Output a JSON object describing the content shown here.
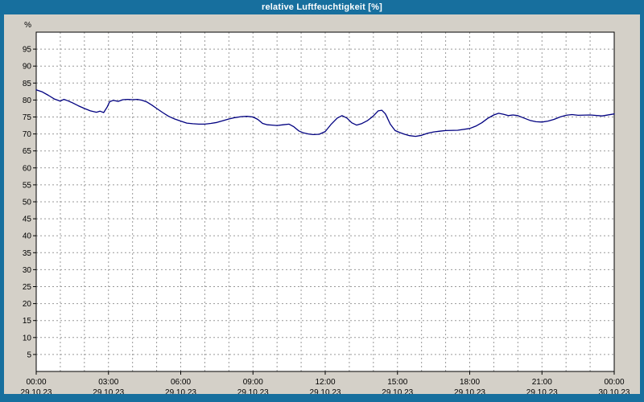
{
  "header": {
    "title": "relative Luftfeuchtigkeit [%]"
  },
  "colors": {
    "titlebar_bg": "#176f9e",
    "frame": "#176f9e",
    "window_bg": "#d4d0c8",
    "plot_bg": "#ffffff",
    "grid": "#999999",
    "axis": "#000000",
    "line": "#000080",
    "title_text": "#ffffff",
    "label_text": "#000000"
  },
  "chart_data": {
    "type": "line",
    "title": "relative Luftfeuchtigkeit [%]",
    "xlabel": "",
    "ylabel": "%",
    "ylim": [
      0,
      100
    ],
    "y_ticks": [
      5,
      10,
      15,
      20,
      25,
      30,
      35,
      40,
      45,
      50,
      55,
      60,
      65,
      70,
      75,
      80,
      85,
      90,
      95
    ],
    "x_range_hours": [
      0,
      24
    ],
    "x_minor_step_hours": 1,
    "grid": true,
    "grid_style": "dashed",
    "legend_position": "none",
    "x_major_ticks": [
      {
        "hour": 0,
        "time": "00:00",
        "date": "29.10.23"
      },
      {
        "hour": 3,
        "time": "03:00",
        "date": "29.10.23"
      },
      {
        "hour": 6,
        "time": "06:00",
        "date": "29.10.23"
      },
      {
        "hour": 9,
        "time": "09:00",
        "date": "29.10.23"
      },
      {
        "hour": 12,
        "time": "12:00",
        "date": "29.10.23"
      },
      {
        "hour": 15,
        "time": "15:00",
        "date": "29.10.23"
      },
      {
        "hour": 18,
        "time": "18:00",
        "date": "29.10.23"
      },
      {
        "hour": 21,
        "time": "21:00",
        "date": "29.10.23"
      },
      {
        "hour": 24,
        "time": "00:00",
        "date": "30.10.23"
      }
    ],
    "series": [
      {
        "name": "relative Luftfeuchtigkeit",
        "color": "#000080",
        "points": [
          [
            0,
            83
          ],
          [
            0.25,
            82.4
          ],
          [
            0.5,
            81.4
          ],
          [
            0.75,
            80.3
          ],
          [
            1,
            79.7
          ],
          [
            1.15,
            80.2
          ],
          [
            1.3,
            79.8
          ],
          [
            1.5,
            79.2
          ],
          [
            1.75,
            78.3
          ],
          [
            2,
            77.5
          ],
          [
            2.25,
            76.8
          ],
          [
            2.5,
            76.4
          ],
          [
            2.65,
            76.7
          ],
          [
            2.8,
            76.3
          ],
          [
            2.95,
            78
          ],
          [
            3.05,
            79.5
          ],
          [
            3.2,
            79.9
          ],
          [
            3.4,
            79.6
          ],
          [
            3.6,
            80.1
          ],
          [
            3.8,
            80.2
          ],
          [
            4,
            80.1
          ],
          [
            4.2,
            80.2
          ],
          [
            4.4,
            79.9
          ],
          [
            4.6,
            79.4
          ],
          [
            4.8,
            78.5
          ],
          [
            5,
            77.5
          ],
          [
            5.25,
            76.3
          ],
          [
            5.5,
            75.2
          ],
          [
            5.75,
            74.4
          ],
          [
            6,
            73.8
          ],
          [
            6.25,
            73.2
          ],
          [
            6.5,
            73
          ],
          [
            6.75,
            72.9
          ],
          [
            7,
            72.9
          ],
          [
            7.25,
            73.1
          ],
          [
            7.5,
            73.4
          ],
          [
            7.75,
            73.9
          ],
          [
            8,
            74.4
          ],
          [
            8.25,
            74.8
          ],
          [
            8.5,
            75.1
          ],
          [
            8.75,
            75.2
          ],
          [
            9,
            75
          ],
          [
            9.2,
            74.3
          ],
          [
            9.4,
            73.1
          ],
          [
            9.6,
            72.7
          ],
          [
            9.8,
            72.6
          ],
          [
            10,
            72.5
          ],
          [
            10.25,
            72.7
          ],
          [
            10.5,
            72.9
          ],
          [
            10.7,
            72.1
          ],
          [
            10.9,
            70.9
          ],
          [
            11.1,
            70.3
          ],
          [
            11.3,
            70
          ],
          [
            11.5,
            69.8
          ],
          [
            11.75,
            69.9
          ],
          [
            12,
            70.7
          ],
          [
            12.25,
            72.9
          ],
          [
            12.5,
            74.7
          ],
          [
            12.7,
            75.4
          ],
          [
            12.9,
            74.7
          ],
          [
            13.1,
            73.3
          ],
          [
            13.3,
            72.6
          ],
          [
            13.5,
            73
          ],
          [
            13.75,
            73.9
          ],
          [
            14,
            75.3
          ],
          [
            14.2,
            76.8
          ],
          [
            14.35,
            77
          ],
          [
            14.5,
            75.9
          ],
          [
            14.7,
            72.9
          ],
          [
            14.9,
            71
          ],
          [
            15.1,
            70.4
          ],
          [
            15.3,
            69.9
          ],
          [
            15.5,
            69.5
          ],
          [
            15.75,
            69.3
          ],
          [
            16,
            69.6
          ],
          [
            16.25,
            70.2
          ],
          [
            16.5,
            70.6
          ],
          [
            16.75,
            70.8
          ],
          [
            17,
            71
          ],
          [
            17.5,
            71.1
          ],
          [
            18,
            71.6
          ],
          [
            18.25,
            72.3
          ],
          [
            18.5,
            73.3
          ],
          [
            18.75,
            74.6
          ],
          [
            19,
            75.6
          ],
          [
            19.2,
            76.1
          ],
          [
            19.4,
            75.8
          ],
          [
            19.6,
            75.4
          ],
          [
            19.8,
            75.6
          ],
          [
            20,
            75.4
          ],
          [
            20.25,
            74.7
          ],
          [
            20.5,
            74
          ],
          [
            20.75,
            73.6
          ],
          [
            21,
            73.5
          ],
          [
            21.25,
            73.8
          ],
          [
            21.5,
            74.3
          ],
          [
            21.75,
            75
          ],
          [
            22,
            75.5
          ],
          [
            22.25,
            75.7
          ],
          [
            22.5,
            75.5
          ],
          [
            23,
            75.6
          ],
          [
            23.5,
            75.3
          ],
          [
            24,
            75.9
          ]
        ]
      }
    ]
  }
}
